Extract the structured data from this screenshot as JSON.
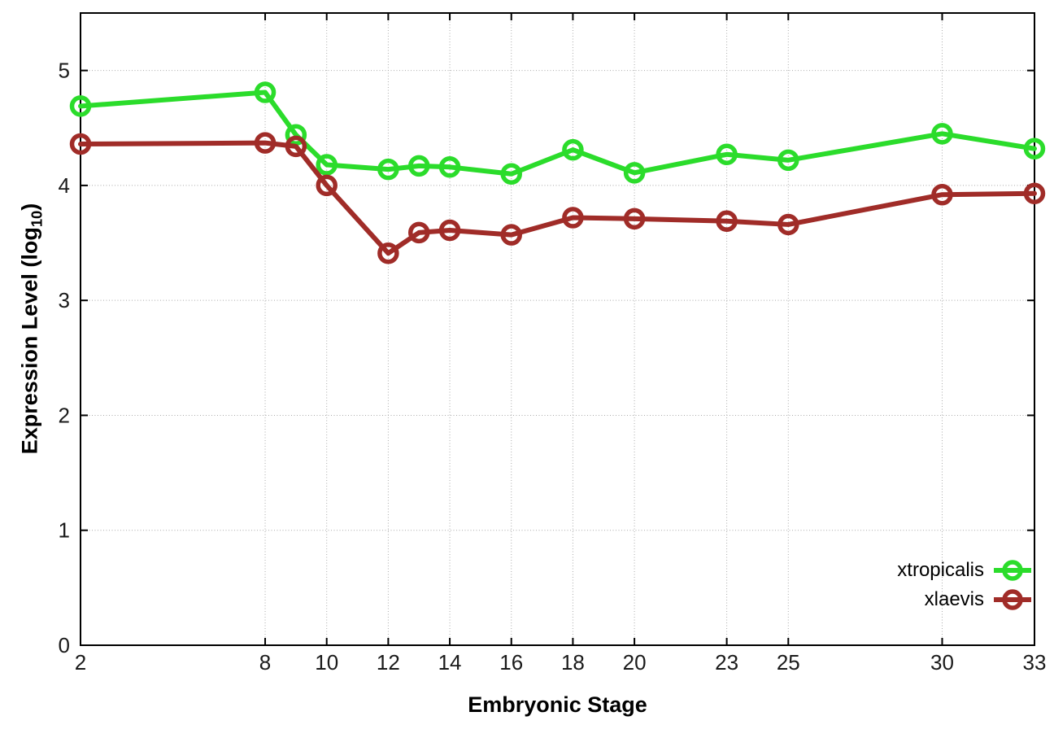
{
  "chart_data": {
    "type": "line",
    "title": "",
    "xlabel": "Embryonic Stage",
    "ylabel": {
      "text": "Expression Level (log",
      "sub": "10",
      "suffix": ")"
    },
    "xlim": [
      2,
      33
    ],
    "ylim": [
      0,
      5.5
    ],
    "xticks": [
      2,
      8,
      10,
      12,
      14,
      16,
      18,
      20,
      23,
      25,
      30,
      33
    ],
    "yticks": [
      0,
      1,
      2,
      3,
      4,
      5
    ],
    "grid": "dotted",
    "legend_position": "inside-bottom-right",
    "x": [
      2,
      8,
      9,
      10,
      12,
      13,
      14,
      16,
      18,
      20,
      23,
      25,
      30,
      33
    ],
    "series": [
      {
        "name": "xtropicalis",
        "color": "#2bdc2b",
        "values": [
          4.69,
          4.81,
          4.44,
          4.18,
          4.14,
          4.17,
          4.16,
          4.1,
          4.31,
          4.11,
          4.27,
          4.22,
          4.45,
          4.32
        ]
      },
      {
        "name": "xlaevis",
        "color": "#a02c28",
        "values": [
          4.36,
          4.37,
          4.34,
          4.0,
          3.41,
          3.59,
          3.61,
          3.57,
          3.72,
          3.71,
          3.69,
          3.66,
          3.92,
          3.93
        ]
      }
    ],
    "colors": {
      "axis": "#000000",
      "grid": "#aaaaaa",
      "tick_label": "#1a1a1a"
    }
  }
}
